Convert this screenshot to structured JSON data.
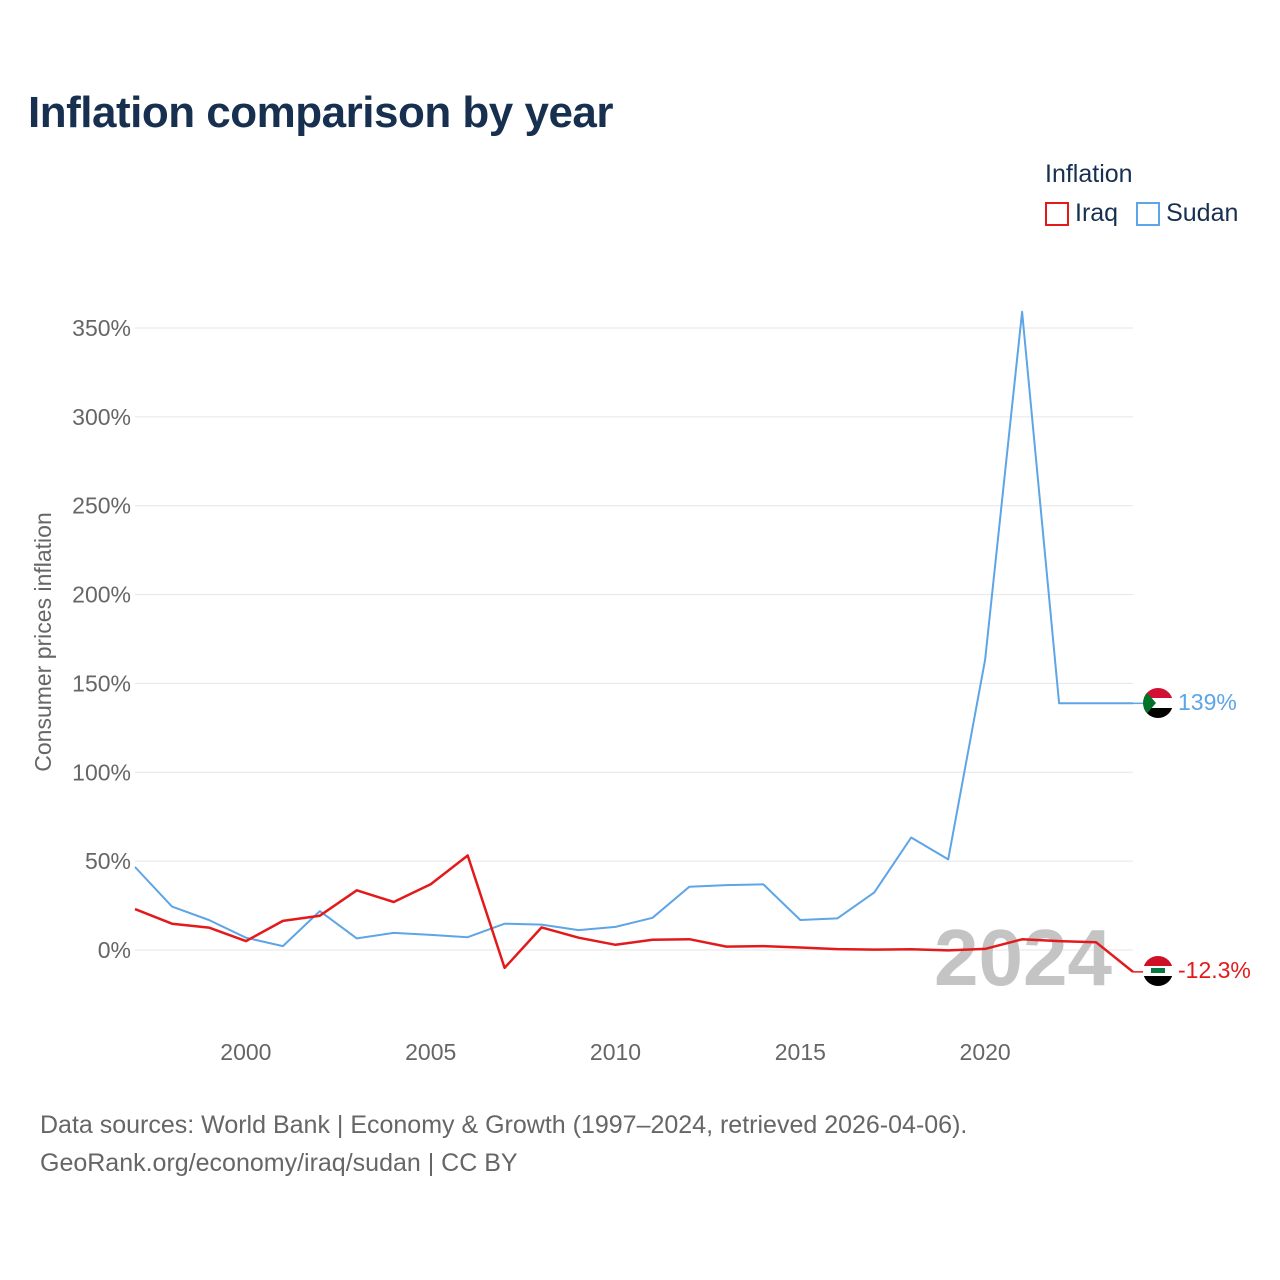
{
  "title": "Inflation comparison by year",
  "legend": {
    "title": "Inflation",
    "items": [
      {
        "label": "Iraq",
        "color": "#e31a1c"
      },
      {
        "label": "Sudan",
        "color": "#5da5e6"
      }
    ]
  },
  "footer": {
    "line1": "Data sources: World Bank | Economy & Growth (1997–2024, retrieved 2026-04-06).",
    "line2": "GeoRank.org/economy/iraq/sudan | CC BY"
  },
  "chart_data": {
    "type": "line",
    "title": "Inflation comparison by year",
    "xlabel": "",
    "ylabel": "Consumer prices inflation",
    "xlim": [
      1997,
      2024
    ],
    "ylim": [
      -35,
      370
    ],
    "x_ticks": [
      2000,
      2005,
      2010,
      2015,
      2020
    ],
    "y_ticks": [
      0,
      50,
      100,
      150,
      200,
      250,
      300,
      350
    ],
    "y_tick_labels": [
      "0%",
      "50%",
      "100%",
      "150%",
      "200%",
      "250%",
      "300%",
      "350%"
    ],
    "x": [
      1997,
      1998,
      1999,
      2000,
      2001,
      2002,
      2003,
      2004,
      2005,
      2006,
      2007,
      2008,
      2009,
      2010,
      2011,
      2012,
      2013,
      2014,
      2015,
      2016,
      2017,
      2018,
      2019,
      2020,
      2021,
      2022,
      2023,
      2024
    ],
    "series": [
      {
        "name": "Iraq",
        "color": "#e31a1c",
        "values": [
          23.0,
          14.8,
          12.6,
          5.0,
          16.4,
          19.3,
          33.6,
          27.0,
          37.0,
          53.2,
          -10.1,
          12.7,
          6.9,
          2.9,
          5.8,
          6.1,
          1.9,
          2.2,
          1.4,
          0.5,
          0.2,
          0.4,
          -0.2,
          0.6,
          6.0,
          5.0,
          4.4,
          -12.3
        ],
        "end_label": "-12.3%"
      },
      {
        "name": "Sudan",
        "color": "#5da5e6",
        "values": [
          46.7,
          24.4,
          16.9,
          6.9,
          2.2,
          21.9,
          6.5,
          9.6,
          8.5,
          7.2,
          14.8,
          14.3,
          11.2,
          13.0,
          18.1,
          35.6,
          36.5,
          36.9,
          16.9,
          17.8,
          32.4,
          63.3,
          51.0,
          163.3,
          359.1,
          138.8,
          138.8,
          138.8
        ],
        "end_label": "139%"
      }
    ],
    "year_watermark": "2024",
    "grid": true,
    "legend_position": "top-right"
  }
}
